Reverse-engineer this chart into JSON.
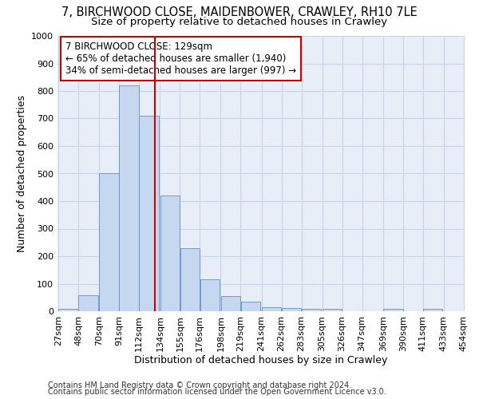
{
  "title1": "7, BIRCHWOOD CLOSE, MAIDENBOWER, CRAWLEY, RH10 7LE",
  "title2": "Size of property relative to detached houses in Crawley",
  "xlabel": "Distribution of detached houses by size in Crawley",
  "ylabel": "Number of detached properties",
  "bar_left_edges": [
    27,
    48,
    70,
    91,
    112,
    134,
    155,
    176,
    198,
    219,
    241,
    262,
    283,
    305,
    326,
    347,
    369,
    390,
    411,
    433
  ],
  "bar_heights": [
    8,
    58,
    500,
    820,
    710,
    420,
    230,
    117,
    55,
    35,
    15,
    12,
    10,
    8,
    0,
    0,
    10,
    0,
    8,
    0
  ],
  "bin_width": 21,
  "bar_color": "#c5d8f0",
  "bar_edge_color": "#6090c8",
  "red_line_x": 129,
  "red_line_color": "#cc0000",
  "annotation_text": "7 BIRCHWOOD CLOSE: 129sqm\n← 65% of detached houses are smaller (1,940)\n34% of semi-detached houses are larger (997) →",
  "annotation_box_color": "#ffffff",
  "annotation_box_edge": "#cc0000",
  "ylim": [
    0,
    1000
  ],
  "yticks": [
    0,
    100,
    200,
    300,
    400,
    500,
    600,
    700,
    800,
    900,
    1000
  ],
  "xtick_labels": [
    "27sqm",
    "48sqm",
    "70sqm",
    "91sqm",
    "112sqm",
    "134sqm",
    "155sqm",
    "176sqm",
    "198sqm",
    "219sqm",
    "241sqm",
    "262sqm",
    "283sqm",
    "305sqm",
    "326sqm",
    "347sqm",
    "369sqm",
    "390sqm",
    "411sqm",
    "433sqm",
    "454sqm"
  ],
  "footer1": "Contains HM Land Registry data © Crown copyright and database right 2024.",
  "footer2": "Contains public sector information licensed under the Open Government Licence v3.0.",
  "background_color": "#ffffff",
  "grid_color": "#c8d4e8",
  "title1_fontsize": 10.5,
  "title2_fontsize": 9.5,
  "axis_fontsize": 9,
  "tick_fontsize": 8,
  "footer_fontsize": 7
}
